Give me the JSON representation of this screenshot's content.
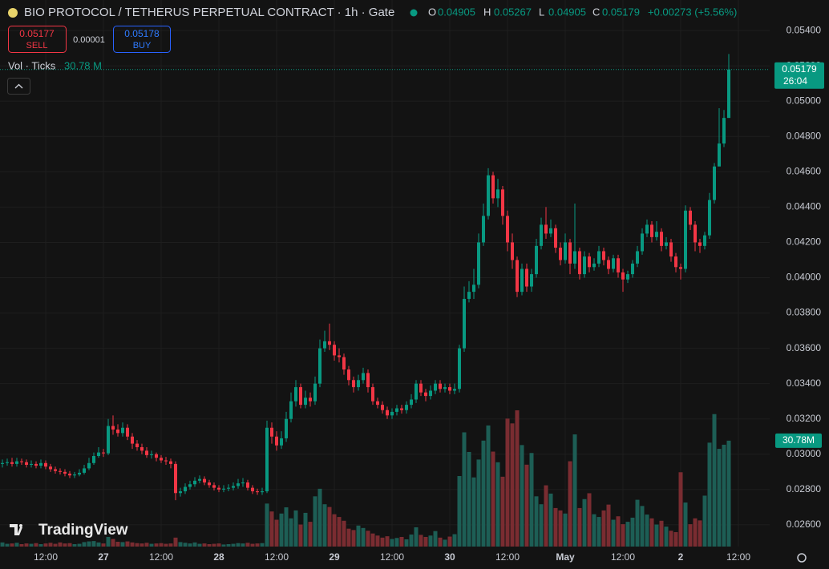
{
  "header": {
    "change": "+0.00273 (+5.56%)",
    "sell": {
      "price": 0.05177,
      "label": "SELL"
    },
    "spread": 1e-05,
    "buy": {
      "price": 0.05178,
      "label": "BUY"
    },
    "logo": "TradingView"
  },
  "chart_data": {
    "type": "candlestick",
    "title": "BIO PROTOCOL / TETHERUS PERPETUAL CONTRACT · 1h · Gate",
    "ohlc_letters": [
      "O",
      "H",
      "L",
      "C"
    ],
    "open": [
      0.02945,
      0.0295,
      0.02955,
      0.02945,
      0.0296,
      0.02955,
      0.0294,
      0.02945,
      0.02935,
      0.0295,
      0.0293,
      0.02915,
      0.02905,
      0.029,
      0.0289,
      0.0288,
      0.02885,
      0.02895,
      0.0292,
      0.0295,
      0.0299,
      0.0301,
      0.03005,
      0.0316,
      0.0314,
      0.0312,
      0.0315,
      0.031,
      0.0306,
      0.0304,
      0.0302,
      0.02995,
      0.03,
      0.0298,
      0.02965,
      0.0296,
      0.02945,
      0.0278,
      0.0279,
      0.02815,
      0.0283,
      0.0285,
      0.0286,
      0.0284,
      0.02825,
      0.0281,
      0.028,
      0.02805,
      0.0281,
      0.0282,
      0.02835,
      0.0284,
      0.0281,
      0.0279,
      0.02785,
      0.0279,
      0.0315,
      0.031,
      0.0305,
      0.0309,
      0.032,
      0.033,
      0.0338,
      0.0328,
      0.0332,
      0.033,
      0.034,
      0.036,
      0.0364,
      0.0362,
      0.0356,
      0.0355,
      0.0348,
      0.0342,
      0.0338,
      0.0342,
      0.0346,
      0.0338,
      0.033,
      0.0328,
      0.0325,
      0.0322,
      0.0324,
      0.0326,
      0.0325,
      0.0328,
      0.0331,
      0.034,
      0.0335,
      0.0333,
      0.0336,
      0.034,
      0.0337,
      0.0338,
      0.0336,
      0.0337,
      0.036,
      0.0388,
      0.0392,
      0.0396,
      0.042,
      0.0435,
      0.0458,
      0.0445,
      0.045,
      0.0435,
      0.042,
      0.041,
      0.0392,
      0.0405,
      0.0395,
      0.0402,
      0.0418,
      0.043,
      0.0425,
      0.0428,
      0.0417,
      0.041,
      0.042,
      0.0408,
      0.0415,
      0.0402,
      0.0412,
      0.0406,
      0.0408,
      0.0415,
      0.041,
      0.0405,
      0.0411,
      0.0403,
      0.0399,
      0.0402,
      0.0408,
      0.0415,
      0.0425,
      0.043,
      0.0423,
      0.0426,
      0.0418,
      0.042,
      0.0412,
      0.0406,
      0.0405,
      0.0438,
      0.043,
      0.042,
      0.0418,
      0.0424,
      0.0444,
      0.0463,
      0.0476,
      0.04905
    ],
    "high": [
      0.0297,
      0.02975,
      0.0298,
      0.0298,
      0.02975,
      0.0297,
      0.02965,
      0.0296,
      0.0297,
      0.02965,
      0.02945,
      0.0293,
      0.0292,
      0.02915,
      0.02905,
      0.029,
      0.02915,
      0.0294,
      0.0298,
      0.0301,
      0.0304,
      0.0303,
      0.032,
      0.0322,
      0.0317,
      0.0318,
      0.0317,
      0.0312,
      0.0308,
      0.0306,
      0.0304,
      0.0302,
      0.0301,
      0.02995,
      0.02985,
      0.02975,
      0.0296,
      0.0281,
      0.02835,
      0.0285,
      0.0287,
      0.0288,
      0.02875,
      0.02855,
      0.0284,
      0.02825,
      0.02825,
      0.0283,
      0.0284,
      0.0286,
      0.02865,
      0.02855,
      0.02825,
      0.02805,
      0.0281,
      0.0319,
      0.0318,
      0.0313,
      0.0313,
      0.0324,
      0.0335,
      0.0342,
      0.034,
      0.0336,
      0.0335,
      0.0344,
      0.0365,
      0.037,
      0.0374,
      0.0364,
      0.036,
      0.0357,
      0.035,
      0.0344,
      0.0345,
      0.0349,
      0.0348,
      0.034,
      0.0332,
      0.033,
      0.0327,
      0.0326,
      0.0328,
      0.0328,
      0.033,
      0.0334,
      0.0342,
      0.0342,
      0.0337,
      0.0339,
      0.0342,
      0.0342,
      0.034,
      0.034,
      0.034,
      0.0362,
      0.0395,
      0.0398,
      0.0405,
      0.0425,
      0.0442,
      0.0462,
      0.046,
      0.0456,
      0.0452,
      0.0438,
      0.0425,
      0.0412,
      0.0408,
      0.0408,
      0.0405,
      0.0422,
      0.0434,
      0.044,
      0.0433,
      0.043,
      0.042,
      0.0425,
      0.0422,
      0.0442,
      0.0417,
      0.0415,
      0.0414,
      0.0411,
      0.0418,
      0.0417,
      0.0412,
      0.0413,
      0.0413,
      0.0405,
      0.0404,
      0.041,
      0.0418,
      0.0428,
      0.0433,
      0.0432,
      0.0432,
      0.0428,
      0.0423,
      0.0422,
      0.0414,
      0.0408,
      0.0441,
      0.044,
      0.0432,
      0.0422,
      0.0426,
      0.0448,
      0.0465,
      0.0496,
      0.0495,
      0.05267
    ],
    "low": [
      0.02925,
      0.02935,
      0.0293,
      0.0293,
      0.0294,
      0.02925,
      0.02925,
      0.0292,
      0.0292,
      0.02915,
      0.029,
      0.0289,
      0.02885,
      0.02875,
      0.02865,
      0.02865,
      0.02875,
      0.02885,
      0.0291,
      0.0294,
      0.0298,
      0.02985,
      0.02995,
      0.0311,
      0.031,
      0.031,
      0.0308,
      0.0303,
      0.0302,
      0.03,
      0.0298,
      0.02975,
      0.0296,
      0.0295,
      0.0294,
      0.0292,
      0.0274,
      0.0276,
      0.02775,
      0.028,
      0.02815,
      0.02835,
      0.02825,
      0.0281,
      0.02795,
      0.02785,
      0.02785,
      0.0279,
      0.02795,
      0.02805,
      0.02815,
      0.02795,
      0.02775,
      0.0277,
      0.0277,
      0.0278,
      0.0306,
      0.0302,
      0.0303,
      0.0307,
      0.0318,
      0.0327,
      0.0326,
      0.0326,
      0.0327,
      0.0328,
      0.0338,
      0.0358,
      0.0359,
      0.0353,
      0.0352,
      0.0345,
      0.0339,
      0.0335,
      0.0336,
      0.034,
      0.0335,
      0.0328,
      0.0326,
      0.0323,
      0.032,
      0.032,
      0.0322,
      0.0323,
      0.0323,
      0.0326,
      0.0329,
      0.0333,
      0.033,
      0.0331,
      0.0334,
      0.0335,
      0.0335,
      0.0334,
      0.0334,
      0.0335,
      0.0358,
      0.0386,
      0.0388,
      0.0394,
      0.0418,
      0.0433,
      0.0442,
      0.044,
      0.043,
      0.0415,
      0.0405,
      0.0389,
      0.039,
      0.0392,
      0.0392,
      0.04,
      0.0416,
      0.0422,
      0.0423,
      0.0414,
      0.0407,
      0.0408,
      0.0402,
      0.0405,
      0.0399,
      0.04,
      0.0403,
      0.0404,
      0.0406,
      0.0407,
      0.0402,
      0.0403,
      0.04,
      0.0392,
      0.0397,
      0.04,
      0.0406,
      0.0413,
      0.0423,
      0.042,
      0.0421,
      0.0415,
      0.0416,
      0.0409,
      0.0403,
      0.0399,
      0.0403,
      0.0427,
      0.0415,
      0.0414,
      0.0416,
      0.0422,
      0.0442,
      0.0466,
      0.0474,
      0.04905
    ],
    "close": [
      0.0295,
      0.02955,
      0.02945,
      0.0296,
      0.02955,
      0.0294,
      0.02945,
      0.02935,
      0.0295,
      0.0293,
      0.02915,
      0.02905,
      0.029,
      0.0289,
      0.0288,
      0.02885,
      0.02895,
      0.0292,
      0.0295,
      0.0299,
      0.0301,
      0.03005,
      0.0316,
      0.0314,
      0.0312,
      0.0315,
      0.031,
      0.0306,
      0.0304,
      0.0302,
      0.02995,
      0.03,
      0.0298,
      0.02965,
      0.0296,
      0.02945,
      0.0278,
      0.0279,
      0.02815,
      0.0283,
      0.0285,
      0.0286,
      0.0284,
      0.02825,
      0.0281,
      0.028,
      0.02805,
      0.0281,
      0.0282,
      0.02835,
      0.0284,
      0.0281,
      0.0279,
      0.02785,
      0.0279,
      0.0315,
      0.031,
      0.0305,
      0.0309,
      0.032,
      0.033,
      0.0338,
      0.0328,
      0.0332,
      0.033,
      0.034,
      0.036,
      0.0364,
      0.0362,
      0.0356,
      0.0355,
      0.0348,
      0.0342,
      0.0338,
      0.0342,
      0.0346,
      0.0338,
      0.033,
      0.0328,
      0.0325,
      0.0322,
      0.0324,
      0.0326,
      0.0325,
      0.0328,
      0.0331,
      0.034,
      0.0335,
      0.0333,
      0.0336,
      0.034,
      0.0337,
      0.0338,
      0.0336,
      0.0337,
      0.036,
      0.0388,
      0.0392,
      0.0396,
      0.042,
      0.0435,
      0.0458,
      0.0445,
      0.045,
      0.0435,
      0.042,
      0.041,
      0.0392,
      0.0405,
      0.0395,
      0.0402,
      0.0418,
      0.043,
      0.0425,
      0.0428,
      0.0417,
      0.041,
      0.042,
      0.0408,
      0.0415,
      0.0402,
      0.0412,
      0.0406,
      0.0408,
      0.0415,
      0.041,
      0.0405,
      0.0411,
      0.0403,
      0.0399,
      0.0402,
      0.0408,
      0.0415,
      0.0425,
      0.043,
      0.0423,
      0.0426,
      0.0418,
      0.042,
      0.0412,
      0.0406,
      0.0405,
      0.0438,
      0.043,
      0.042,
      0.0418,
      0.0424,
      0.0444,
      0.0463,
      0.0476,
      0.04905,
      0.05179
    ],
    "volume": {
      "name": "Vol · Ticks",
      "legend_label": "30.78 M",
      "last_label": "30.78M",
      "values": [
        1.2,
        0.8,
        0.9,
        1.1,
        0.7,
        0.9,
        0.8,
        1.0,
        0.7,
        0.9,
        1.1,
        0.8,
        1.2,
        0.9,
        1.0,
        0.7,
        0.8,
        1.3,
        1.5,
        1.6,
        1.2,
        0.9,
        2.8,
        2.2,
        1.4,
        1.3,
        1.5,
        1.2,
        1.0,
        0.9,
        1.1,
        0.8,
        0.9,
        1.0,
        0.8,
        0.9,
        2.6,
        1.3,
        1.1,
        0.9,
        1.2,
        0.8,
        0.9,
        0.7,
        0.8,
        0.9,
        0.6,
        0.7,
        0.8,
        1.0,
        0.9,
        1.1,
        0.8,
        0.9,
        1.0,
        12.5,
        10.2,
        7.8,
        9.6,
        11.4,
        8.2,
        10.5,
        6.4,
        9.8,
        7.2,
        14.6,
        16.8,
        12.3,
        11.5,
        9.4,
        8.6,
        7.5,
        5.2,
        4.8,
        6.1,
        5.4,
        4.6,
        3.8,
        3.2,
        2.6,
        3.0,
        2.2,
        2.5,
        2.8,
        2.1,
        3.5,
        5.6,
        3.4,
        2.8,
        3.2,
        4.5,
        2.6,
        2.0,
        2.9,
        3.6,
        20.5,
        33.2,
        27.5,
        20.1,
        25.3,
        30.8,
        35.2,
        27.6,
        24.5,
        20.3,
        37.2,
        35.8,
        39.6,
        29.5,
        23.8,
        27.2,
        14.6,
        12.3,
        17.8,
        15.4,
        11.2,
        10.5,
        9.6,
        24.8,
        32.6,
        11.2,
        13.8,
        15.5,
        9.4,
        8.6,
        10.5,
        12.2,
        7.8,
        8.8,
        6.5,
        7.2,
        8.4,
        13.6,
        11.8,
        9.3,
        8.2,
        6.4,
        7.5,
        5.8,
        4.6,
        4.2,
        21.6,
        12.8,
        6.5,
        8.2,
        7.6,
        14.8,
        30.2,
        38.5,
        28.4,
        29.6,
        30.78
      ]
    },
    "timer": "26:04",
    "xlim": [
      -0.5,
      159.5
    ],
    "xticks": [
      {
        "value": 9,
        "label": "12:00"
      },
      {
        "value": 21,
        "label": "27"
      },
      {
        "value": 33,
        "label": "12:00"
      },
      {
        "value": 45,
        "label": "28"
      },
      {
        "value": 57,
        "label": "12:00"
      },
      {
        "value": 69,
        "label": "29"
      },
      {
        "value": 81,
        "label": "12:00"
      },
      {
        "value": 93,
        "label": "30"
      },
      {
        "value": 105,
        "label": "12:00"
      },
      {
        "value": 117,
        "label": "May"
      },
      {
        "value": 129,
        "label": "12:00"
      },
      {
        "value": 141,
        "label": "2"
      },
      {
        "value": 153,
        "label": "12:00"
      }
    ],
    "ylim": [
      0.02477,
      0.05573
    ],
    "yticks": [
      {
        "value": 0.026,
        "label": "0.02600"
      },
      {
        "value": 0.028,
        "label": "0.02800"
      },
      {
        "value": 0.03,
        "label": "0.03000"
      },
      {
        "value": 0.032,
        "label": "0.03200"
      },
      {
        "value": 0.034,
        "label": "0.03400"
      },
      {
        "value": 0.036,
        "label": "0.03600"
      },
      {
        "value": 0.038,
        "label": "0.03800"
      },
      {
        "value": 0.04,
        "label": "0.04000"
      },
      {
        "value": 0.042,
        "label": "0.04200"
      },
      {
        "value": 0.044,
        "label": "0.04400"
      },
      {
        "value": 0.046,
        "label": "0.04600"
      },
      {
        "value": 0.048,
        "label": "0.04800"
      },
      {
        "value": 0.05,
        "label": "0.05000"
      },
      {
        "value": 0.052,
        "label": "0.05200"
      },
      {
        "value": 0.054,
        "label": "0.05400"
      }
    ],
    "grid": true,
    "colors": {
      "up": "#089981",
      "down": "#f23645",
      "volume_up": "#1d5e55",
      "volume_down": "#7a2c31"
    }
  }
}
